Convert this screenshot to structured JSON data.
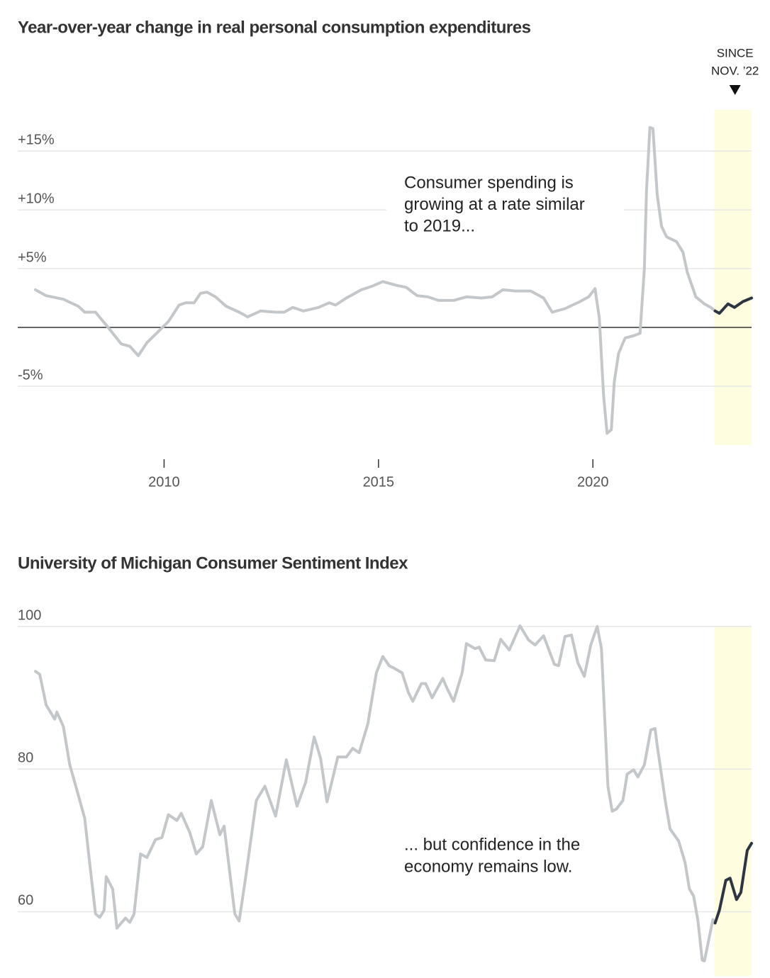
{
  "chart_data": [
    {
      "type": "line",
      "title": "Year-over-year change in real personal consumption expenditures",
      "annotation": [
        "Consumer spending is",
        "growing at a rate similar",
        "to 2019..."
      ],
      "highlight_label": [
        "SINCE",
        "NOV. ’22"
      ],
      "highlight_start": 2022.83,
      "highlight_color": "#fefde0",
      "color": "#c4c7ca",
      "highlight_line_color": "#2d3640",
      "xlim": [
        2007,
        2023.75
      ],
      "xticks": [
        2010,
        2015,
        2020
      ],
      "ylim": [
        -10,
        18.5
      ],
      "yticks": [
        {
          "value": -5,
          "label": "-5%"
        },
        {
          "value": 5,
          "label": "+5%"
        },
        {
          "value": 10,
          "label": "+10%"
        },
        {
          "value": 15,
          "label": "+15%"
        }
      ],
      "grid": true,
      "x": [
        2007.0,
        2007.25,
        2007.65,
        2008.0,
        2008.15,
        2008.4,
        2008.65,
        2009.0,
        2009.2,
        2009.4,
        2009.6,
        2009.85,
        2010.1,
        2010.35,
        2010.5,
        2010.7,
        2010.85,
        2011.0,
        2011.2,
        2011.45,
        2011.75,
        2011.95,
        2012.25,
        2012.6,
        2012.8,
        2013.0,
        2013.25,
        2013.6,
        2013.85,
        2014.0,
        2014.25,
        2014.6,
        2014.85,
        2015.1,
        2015.4,
        2015.65,
        2015.9,
        2016.15,
        2016.4,
        2016.75,
        2017.05,
        2017.4,
        2017.65,
        2017.9,
        2018.2,
        2018.55,
        2018.85,
        2019.05,
        2019.35,
        2019.7,
        2019.9,
        2020.05,
        2020.15,
        2020.25,
        2020.33,
        2020.43,
        2020.5,
        2020.6,
        2020.75,
        2020.95,
        2021.1,
        2021.2,
        2021.25,
        2021.33,
        2021.4,
        2021.5,
        2021.6,
        2021.72,
        2021.95,
        2022.1,
        2022.2,
        2022.4,
        2022.6,
        2022.75,
        2022.85,
        2022.95,
        2023.15,
        2023.3,
        2023.5,
        2023.7
      ],
      "values": [
        3.2,
        2.7,
        2.4,
        1.8,
        1.3,
        1.3,
        0.2,
        -1.4,
        -1.6,
        -2.4,
        -1.3,
        -0.4,
        0.5,
        1.9,
        2.1,
        2.1,
        2.9,
        3.0,
        2.6,
        1.8,
        1.3,
        0.9,
        1.4,
        1.3,
        1.3,
        1.7,
        1.4,
        1.7,
        2.1,
        1.9,
        2.5,
        3.2,
        3.5,
        3.9,
        3.6,
        3.4,
        2.7,
        2.6,
        2.3,
        2.3,
        2.6,
        2.5,
        2.6,
        3.2,
        3.1,
        3.1,
        2.5,
        1.3,
        1.6,
        2.2,
        2.6,
        3.3,
        0.8,
        -5.8,
        -9.0,
        -8.7,
        -4.6,
        -2.2,
        -0.9,
        -0.7,
        -0.5,
        5.0,
        11.6,
        17.0,
        16.9,
        11.3,
        8.6,
        7.7,
        7.3,
        6.4,
        4.7,
        2.6,
        2.0,
        1.7,
        1.4,
        1.2,
        2.0,
        1.7,
        2.2,
        2.5
      ]
    },
    {
      "type": "line",
      "title": "University of Michigan Consumer Sentiment Index",
      "annotation": [
        "... but confidence in the",
        "economy remains low."
      ],
      "highlight_start": 2022.83,
      "highlight_color": "#fefde0",
      "color": "#c4c7ca",
      "highlight_line_color": "#2d3640",
      "xlim": [
        2007,
        2023.75
      ],
      "ylim": [
        51,
        100
      ],
      "yticks": [
        60,
        80,
        100
      ],
      "grid": true,
      "x": [
        2007.0,
        2007.1,
        2007.25,
        2007.45,
        2007.5,
        2007.65,
        2007.8,
        2007.95,
        2008.15,
        2008.25,
        2008.4,
        2008.5,
        2008.6,
        2008.65,
        2008.8,
        2008.9,
        2009.1,
        2009.2,
        2009.3,
        2009.45,
        2009.6,
        2009.8,
        2009.95,
        2010.1,
        2010.3,
        2010.4,
        2010.6,
        2010.75,
        2010.9,
        2011.1,
        2011.3,
        2011.4,
        2011.5,
        2011.65,
        2011.75,
        2011.9,
        2012.15,
        2012.35,
        2012.6,
        2012.85,
        2013.1,
        2013.3,
        2013.5,
        2013.65,
        2013.8,
        2014.05,
        2014.25,
        2014.4,
        2014.55,
        2014.75,
        2014.95,
        2015.1,
        2015.25,
        2015.35,
        2015.55,
        2015.7,
        2015.8,
        2016.0,
        2016.1,
        2016.25,
        2016.5,
        2016.6,
        2016.75,
        2016.95,
        2017.05,
        2017.25,
        2017.35,
        2017.5,
        2017.7,
        2017.85,
        2018.05,
        2018.3,
        2018.5,
        2018.65,
        2018.85,
        2019.1,
        2019.2,
        2019.35,
        2019.5,
        2019.65,
        2019.8,
        2019.95,
        2020.1,
        2020.2,
        2020.35,
        2020.45,
        2020.55,
        2020.7,
        2020.8,
        2020.95,
        2021.05,
        2021.2,
        2021.35,
        2021.45,
        2021.5,
        2021.7,
        2021.8,
        2022.0,
        2022.15,
        2022.25,
        2022.35,
        2022.45,
        2022.55,
        2022.6,
        2022.8,
        2022.85,
        2022.95,
        2023.1,
        2023.2,
        2023.35,
        2023.45,
        2023.6,
        2023.7
      ],
      "values": [
        93.7,
        93.3,
        89.0,
        87.0,
        88.0,
        86.0,
        80.6,
        77.4,
        73.1,
        67.6,
        59.7,
        59.2,
        60.2,
        64.9,
        63.2,
        57.7,
        59.1,
        58.5,
        59.7,
        68.1,
        67.6,
        70.1,
        70.4,
        73.6,
        72.8,
        73.8,
        71.1,
        68.1,
        69.1,
        75.6,
        70.8,
        72.0,
        67.1,
        59.7,
        58.7,
        64.7,
        75.6,
        77.6,
        73.4,
        81.3,
        74.8,
        78.1,
        84.5,
        81.5,
        75.4,
        81.7,
        81.7,
        82.9,
        82.3,
        86.3,
        93.5,
        95.8,
        94.5,
        94.2,
        93.5,
        90.7,
        89.5,
        92.0,
        92.0,
        90.0,
        92.7,
        91.3,
        89.5,
        93.5,
        97.6,
        96.9,
        97.1,
        95.3,
        95.2,
        98.2,
        96.7,
        100.1,
        98.1,
        97.4,
        98.7,
        94.7,
        94.5,
        98.6,
        98.8,
        94.9,
        93.0,
        97.4,
        100.0,
        96.9,
        77.6,
        74.1,
        74.4,
        75.6,
        79.3,
        79.9,
        78.9,
        80.6,
        85.5,
        85.7,
        83.3,
        75.1,
        71.6,
        69.9,
        66.9,
        63.2,
        62.2,
        58.7,
        53.2,
        53.1,
        58.9,
        58.4,
        60.2,
        64.4,
        64.7,
        61.7,
        62.7,
        68.6,
        69.6
      ]
    }
  ]
}
